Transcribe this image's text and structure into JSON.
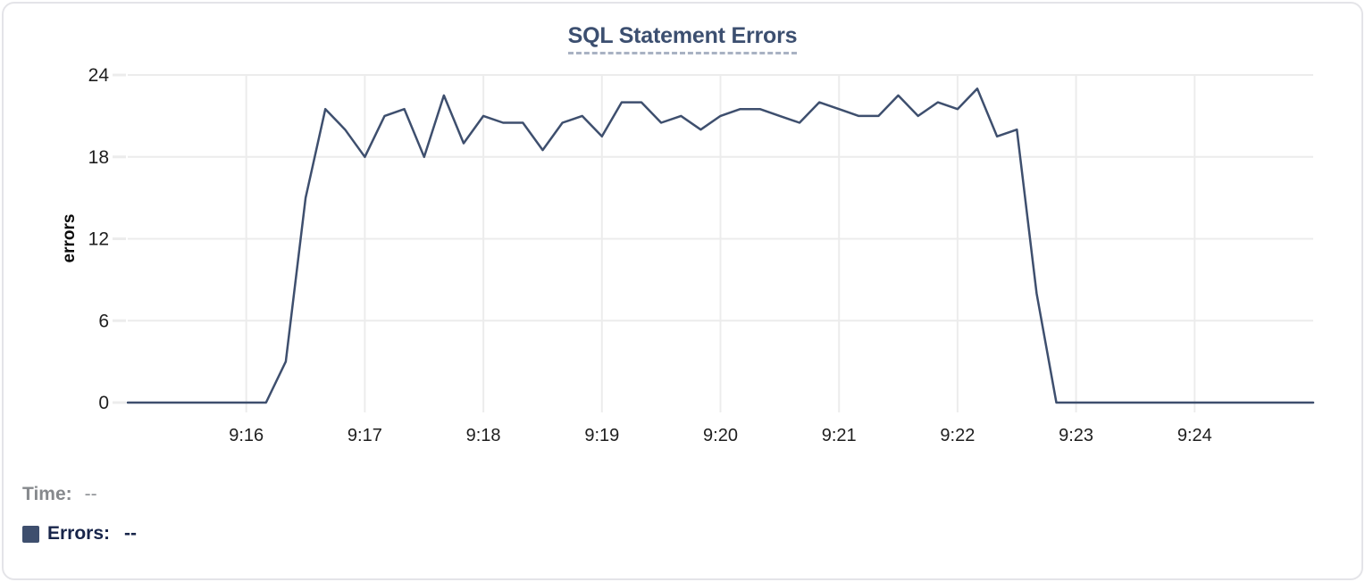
{
  "widget": {
    "title": "SQL Statement Errors"
  },
  "chart_data": {
    "type": "line",
    "title": "SQL Statement Errors",
    "xlabel": "",
    "ylabel": "errors",
    "series_name": "Errors",
    "x": [
      "9:15:00",
      "9:15:10",
      "9:15:20",
      "9:15:30",
      "9:15:40",
      "9:15:50",
      "9:16:00",
      "9:16:10",
      "9:16:20",
      "9:16:30",
      "9:16:40",
      "9:16:50",
      "9:17:00",
      "9:17:10",
      "9:17:20",
      "9:17:30",
      "9:17:40",
      "9:17:50",
      "9:18:00",
      "9:18:10",
      "9:18:20",
      "9:18:30",
      "9:18:40",
      "9:18:50",
      "9:19:00",
      "9:19:10",
      "9:19:20",
      "9:19:30",
      "9:19:40",
      "9:19:50",
      "9:20:00",
      "9:20:10",
      "9:20:20",
      "9:20:30",
      "9:20:40",
      "9:20:50",
      "9:21:00",
      "9:21:10",
      "9:21:20",
      "9:21:30",
      "9:21:40",
      "9:21:50",
      "9:22:00",
      "9:22:10",
      "9:22:20",
      "9:22:30",
      "9:22:40",
      "9:22:50",
      "9:23:00",
      "9:23:10",
      "9:23:20",
      "9:23:30",
      "9:23:40",
      "9:23:50",
      "9:24:00",
      "9:24:10",
      "9:24:20",
      "9:24:30",
      "9:24:40",
      "9:24:50",
      "9:25:00"
    ],
    "values": [
      0,
      0,
      0,
      0,
      0,
      0,
      0,
      0,
      3,
      15,
      21.5,
      20,
      18,
      21,
      21.5,
      18,
      22.5,
      19,
      21,
      20.5,
      20.5,
      18.5,
      20.5,
      21,
      19.5,
      22,
      22,
      20.5,
      21,
      20,
      21,
      21.5,
      21.5,
      21,
      20.5,
      22,
      21.5,
      21,
      21,
      22.5,
      21,
      22,
      21.5,
      23,
      19.5,
      20,
      8,
      0,
      0,
      0,
      0,
      0,
      0,
      0,
      0,
      0,
      0,
      0,
      0,
      0,
      0
    ],
    "yticks": [
      0,
      6,
      12,
      18,
      24
    ],
    "xticks": [
      "9:16",
      "9:17",
      "9:18",
      "9:19",
      "9:20",
      "9:21",
      "9:22",
      "9:23",
      "9:24"
    ],
    "ylim": [
      0,
      24
    ],
    "x_range": [
      "9:15:00",
      "9:25:00"
    ],
    "grid": true,
    "legend_position": "bottom-left"
  },
  "colors": {
    "line": "#3E4F6E",
    "grid": "#ECECEC",
    "title": "#3C4F70",
    "title_underline": "#A9B2C3",
    "tick_label": "#1E1E1E",
    "time_label": "#86898D",
    "time_value": "#909398",
    "errors_label": "#18254A",
    "legend_swatch": "#3E4F6E",
    "card_border": "#E4E4E8"
  },
  "readout": {
    "time_label": "Time:",
    "time_value": "--",
    "errors_label": "Errors:",
    "errors_value": "--"
  }
}
